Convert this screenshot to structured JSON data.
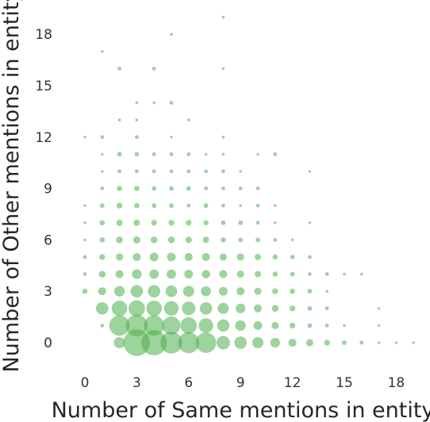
{
  "chart_data": {
    "type": "scatter",
    "title": "",
    "xlabel": "Number of Same mentions in entity",
    "ylabel": "Number of Other mentions in entity",
    "xlim": [
      -1,
      20
    ],
    "ylim": [
      -1,
      19.5
    ],
    "xticks": [
      0,
      3,
      6,
      9,
      12,
      15,
      18
    ],
    "yticks": [
      0,
      3,
      6,
      9,
      12,
      15,
      18
    ],
    "grid": false,
    "color": "#4daf4a",
    "size_encodes": "count",
    "points": [
      {
        "x": 8,
        "y": 19,
        "count": 1
      },
      {
        "x": 5,
        "y": 18,
        "count": 1
      },
      {
        "x": 1,
        "y": 17,
        "count": 1
      },
      {
        "x": 2,
        "y": 16,
        "count": 2
      },
      {
        "x": 4,
        "y": 16,
        "count": 2
      },
      {
        "x": 8,
        "y": 16,
        "count": 1
      },
      {
        "x": 3,
        "y": 14,
        "count": 1
      },
      {
        "x": 4,
        "y": 14,
        "count": 1
      },
      {
        "x": 5,
        "y": 14,
        "count": 2
      },
      {
        "x": 2,
        "y": 13,
        "count": 1
      },
      {
        "x": 3,
        "y": 13,
        "count": 1
      },
      {
        "x": 6,
        "y": 13,
        "count": 1
      },
      {
        "x": 0,
        "y": 12,
        "count": 1
      },
      {
        "x": 1,
        "y": 12,
        "count": 2
      },
      {
        "x": 3,
        "y": 12,
        "count": 2
      },
      {
        "x": 5,
        "y": 12,
        "count": 1
      },
      {
        "x": 8,
        "y": 12,
        "count": 1
      },
      {
        "x": 1,
        "y": 11,
        "count": 1
      },
      {
        "x": 2,
        "y": 11,
        "count": 3
      },
      {
        "x": 3,
        "y": 11,
        "count": 3
      },
      {
        "x": 4,
        "y": 11,
        "count": 2
      },
      {
        "x": 5,
        "y": 11,
        "count": 2
      },
      {
        "x": 6,
        "y": 11,
        "count": 2
      },
      {
        "x": 7,
        "y": 11,
        "count": 1
      },
      {
        "x": 8,
        "y": 11,
        "count": 1
      },
      {
        "x": 10,
        "y": 11,
        "count": 1
      },
      {
        "x": 11,
        "y": 11,
        "count": 2
      },
      {
        "x": 1,
        "y": 10,
        "count": 1
      },
      {
        "x": 2,
        "y": 10,
        "count": 2
      },
      {
        "x": 3,
        "y": 10,
        "count": 2
      },
      {
        "x": 4,
        "y": 10,
        "count": 2
      },
      {
        "x": 5,
        "y": 10,
        "count": 2
      },
      {
        "x": 6,
        "y": 10,
        "count": 2
      },
      {
        "x": 7,
        "y": 10,
        "count": 2
      },
      {
        "x": 8,
        "y": 10,
        "count": 2
      },
      {
        "x": 9,
        "y": 10,
        "count": 1
      },
      {
        "x": 13,
        "y": 10,
        "count": 1
      },
      {
        "x": 1,
        "y": 9,
        "count": 2
      },
      {
        "x": 2,
        "y": 9,
        "count": 4
      },
      {
        "x": 3,
        "y": 9,
        "count": 4
      },
      {
        "x": 4,
        "y": 9,
        "count": 3
      },
      {
        "x": 5,
        "y": 9,
        "count": 3
      },
      {
        "x": 6,
        "y": 9,
        "count": 3
      },
      {
        "x": 7,
        "y": 9,
        "count": 2
      },
      {
        "x": 8,
        "y": 9,
        "count": 2
      },
      {
        "x": 9,
        "y": 9,
        "count": 2
      },
      {
        "x": 10,
        "y": 9,
        "count": 2
      },
      {
        "x": 0,
        "y": 8,
        "count": 1
      },
      {
        "x": 1,
        "y": 8,
        "count": 3
      },
      {
        "x": 2,
        "y": 8,
        "count": 5
      },
      {
        "x": 3,
        "y": 8,
        "count": 4
      },
      {
        "x": 4,
        "y": 8,
        "count": 3
      },
      {
        "x": 5,
        "y": 8,
        "count": 3
      },
      {
        "x": 6,
        "y": 8,
        "count": 2
      },
      {
        "x": 7,
        "y": 8,
        "count": 3
      },
      {
        "x": 8,
        "y": 8,
        "count": 2
      },
      {
        "x": 9,
        "y": 8,
        "count": 1
      },
      {
        "x": 10,
        "y": 8,
        "count": 2
      },
      {
        "x": 11,
        "y": 8,
        "count": 1
      },
      {
        "x": 0,
        "y": 7,
        "count": 1
      },
      {
        "x": 1,
        "y": 7,
        "count": 4
      },
      {
        "x": 2,
        "y": 7,
        "count": 6
      },
      {
        "x": 3,
        "y": 7,
        "count": 6
      },
      {
        "x": 4,
        "y": 7,
        "count": 5
      },
      {
        "x": 5,
        "y": 7,
        "count": 5
      },
      {
        "x": 6,
        "y": 7,
        "count": 5
      },
      {
        "x": 7,
        "y": 7,
        "count": 4
      },
      {
        "x": 8,
        "y": 7,
        "count": 3
      },
      {
        "x": 9,
        "y": 7,
        "count": 3
      },
      {
        "x": 10,
        "y": 7,
        "count": 2
      },
      {
        "x": 11,
        "y": 7,
        "count": 1
      },
      {
        "x": 13,
        "y": 7,
        "count": 1
      },
      {
        "x": 0,
        "y": 6,
        "count": 1
      },
      {
        "x": 1,
        "y": 6,
        "count": 4
      },
      {
        "x": 2,
        "y": 6,
        "count": 7
      },
      {
        "x": 3,
        "y": 6,
        "count": 8
      },
      {
        "x": 4,
        "y": 6,
        "count": 7
      },
      {
        "x": 5,
        "y": 6,
        "count": 7
      },
      {
        "x": 6,
        "y": 6,
        "count": 6
      },
      {
        "x": 7,
        "y": 6,
        "count": 6
      },
      {
        "x": 8,
        "y": 6,
        "count": 4
      },
      {
        "x": 9,
        "y": 6,
        "count": 3
      },
      {
        "x": 10,
        "y": 6,
        "count": 3
      },
      {
        "x": 11,
        "y": 6,
        "count": 2
      },
      {
        "x": 12,
        "y": 6,
        "count": 1
      },
      {
        "x": 0,
        "y": 5,
        "count": 2
      },
      {
        "x": 1,
        "y": 5,
        "count": 5
      },
      {
        "x": 2,
        "y": 5,
        "count": 8
      },
      {
        "x": 3,
        "y": 5,
        "count": 10
      },
      {
        "x": 4,
        "y": 5,
        "count": 12
      },
      {
        "x": 5,
        "y": 5,
        "count": 12
      },
      {
        "x": 6,
        "y": 5,
        "count": 10
      },
      {
        "x": 7,
        "y": 5,
        "count": 10
      },
      {
        "x": 8,
        "y": 5,
        "count": 8
      },
      {
        "x": 9,
        "y": 5,
        "count": 8
      },
      {
        "x": 10,
        "y": 5,
        "count": 6
      },
      {
        "x": 11,
        "y": 5,
        "count": 4
      },
      {
        "x": 12,
        "y": 5,
        "count": 3
      },
      {
        "x": 13,
        "y": 5,
        "count": 2
      },
      {
        "x": 0,
        "y": 4,
        "count": 2
      },
      {
        "x": 1,
        "y": 4,
        "count": 7
      },
      {
        "x": 2,
        "y": 4,
        "count": 10
      },
      {
        "x": 3,
        "y": 4,
        "count": 15
      },
      {
        "x": 4,
        "y": 4,
        "count": 14
      },
      {
        "x": 5,
        "y": 4,
        "count": 14
      },
      {
        "x": 6,
        "y": 4,
        "count": 12
      },
      {
        "x": 7,
        "y": 4,
        "count": 11
      },
      {
        "x": 8,
        "y": 4,
        "count": 10
      },
      {
        "x": 9,
        "y": 4,
        "count": 8
      },
      {
        "x": 10,
        "y": 4,
        "count": 6
      },
      {
        "x": 11,
        "y": 4,
        "count": 4
      },
      {
        "x": 12,
        "y": 4,
        "count": 3
      },
      {
        "x": 13,
        "y": 4,
        "count": 2
      },
      {
        "x": 14,
        "y": 4,
        "count": 2
      },
      {
        "x": 15,
        "y": 4,
        "count": 1
      },
      {
        "x": 16,
        "y": 4,
        "count": 1
      },
      {
        "x": 0,
        "y": 3,
        "count": 4
      },
      {
        "x": 1,
        "y": 3,
        "count": 10
      },
      {
        "x": 2,
        "y": 3,
        "count": 18
      },
      {
        "x": 3,
        "y": 3,
        "count": 25
      },
      {
        "x": 4,
        "y": 3,
        "count": 25
      },
      {
        "x": 5,
        "y": 3,
        "count": 22
      },
      {
        "x": 6,
        "y": 3,
        "count": 20
      },
      {
        "x": 7,
        "y": 3,
        "count": 16
      },
      {
        "x": 8,
        "y": 3,
        "count": 12
      },
      {
        "x": 9,
        "y": 3,
        "count": 10
      },
      {
        "x": 10,
        "y": 3,
        "count": 8
      },
      {
        "x": 11,
        "y": 3,
        "count": 5
      },
      {
        "x": 12,
        "y": 3,
        "count": 4
      },
      {
        "x": 13,
        "y": 3,
        "count": 3
      },
      {
        "x": 14,
        "y": 3,
        "count": 1
      },
      {
        "x": 1,
        "y": 2,
        "count": 25
      },
      {
        "x": 2,
        "y": 2,
        "count": 40
      },
      {
        "x": 3,
        "y": 2,
        "count": 45
      },
      {
        "x": 4,
        "y": 2,
        "count": 40
      },
      {
        "x": 5,
        "y": 2,
        "count": 35
      },
      {
        "x": 6,
        "y": 2,
        "count": 30
      },
      {
        "x": 7,
        "y": 2,
        "count": 25
      },
      {
        "x": 8,
        "y": 2,
        "count": 20
      },
      {
        "x": 9,
        "y": 2,
        "count": 15
      },
      {
        "x": 10,
        "y": 2,
        "count": 10
      },
      {
        "x": 11,
        "y": 2,
        "count": 7
      },
      {
        "x": 12,
        "y": 2,
        "count": 5
      },
      {
        "x": 13,
        "y": 2,
        "count": 3
      },
      {
        "x": 14,
        "y": 2,
        "count": 2
      },
      {
        "x": 17,
        "y": 2,
        "count": 1
      },
      {
        "x": 1,
        "y": 1,
        "count": 2
      },
      {
        "x": 2,
        "y": 1,
        "count": 70
      },
      {
        "x": 3,
        "y": 1,
        "count": 80
      },
      {
        "x": 4,
        "y": 1,
        "count": 70
      },
      {
        "x": 5,
        "y": 1,
        "count": 55
      },
      {
        "x": 6,
        "y": 1,
        "count": 45
      },
      {
        "x": 7,
        "y": 1,
        "count": 35
      },
      {
        "x": 8,
        "y": 1,
        "count": 25
      },
      {
        "x": 9,
        "y": 1,
        "count": 18
      },
      {
        "x": 10,
        "y": 1,
        "count": 12
      },
      {
        "x": 11,
        "y": 1,
        "count": 8
      },
      {
        "x": 12,
        "y": 1,
        "count": 5
      },
      {
        "x": 13,
        "y": 1,
        "count": 3
      },
      {
        "x": 14,
        "y": 1,
        "count": 2
      },
      {
        "x": 15,
        "y": 1,
        "count": 1
      },
      {
        "x": 17,
        "y": 1,
        "count": 1
      },
      {
        "x": 2,
        "y": 0,
        "count": 20
      },
      {
        "x": 3,
        "y": 0,
        "count": 120
      },
      {
        "x": 4,
        "y": 0,
        "count": 110
      },
      {
        "x": 5,
        "y": 0,
        "count": 80
      },
      {
        "x": 6,
        "y": 0,
        "count": 75
      },
      {
        "x": 7,
        "y": 0,
        "count": 70
      },
      {
        "x": 8,
        "y": 0,
        "count": 30
      },
      {
        "x": 9,
        "y": 0,
        "count": 25
      },
      {
        "x": 10,
        "y": 0,
        "count": 20
      },
      {
        "x": 11,
        "y": 0,
        "count": 15
      },
      {
        "x": 12,
        "y": 0,
        "count": 10
      },
      {
        "x": 13,
        "y": 0,
        "count": 8
      },
      {
        "x": 14,
        "y": 0,
        "count": 5
      },
      {
        "x": 15,
        "y": 0,
        "count": 3
      },
      {
        "x": 16,
        "y": 0,
        "count": 2
      },
      {
        "x": 17,
        "y": 0,
        "count": 1
      },
      {
        "x": 18,
        "y": 0,
        "count": 1
      },
      {
        "x": 19,
        "y": 0,
        "count": 1
      }
    ]
  }
}
